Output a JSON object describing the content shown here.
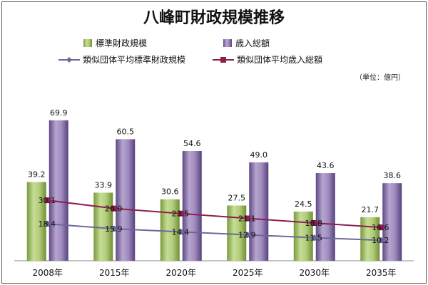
{
  "chart_data": {
    "type": "bar",
    "title": "八峰町財政規模推移",
    "unit": "（単位：億円）",
    "categories": [
      "2008年",
      "2015年",
      "2020年",
      "2025年",
      "2030年",
      "2035年"
    ],
    "ylim": [
      0,
      80
    ],
    "grid": false,
    "legend_position": "top",
    "series": [
      {
        "name": "標準財政規模",
        "type": "bar",
        "color": "#9bbb59",
        "values": [
          39.2,
          33.9,
          30.6,
          27.5,
          24.5,
          21.7
        ]
      },
      {
        "name": "歳入総額",
        "type": "bar",
        "color": "#8064a2",
        "values": [
          69.9,
          60.5,
          54.6,
          49.0,
          43.6,
          38.6
        ]
      },
      {
        "name": "類似団体平均標準財政規模",
        "type": "line",
        "marker": "diamond",
        "color": "#6a6a9c",
        "values": [
          18.4,
          15.9,
          14.4,
          12.9,
          11.5,
          10.2
        ]
      },
      {
        "name": "類似団体平均歳入総額",
        "type": "line",
        "marker": "square",
        "color": "#8c1f4e",
        "values": [
          30.1,
          26.0,
          23.5,
          21.1,
          18.8,
          16.6
        ]
      }
    ],
    "data_labels": {
      "bar1": [
        "39.2",
        "33.9",
        "30.6",
        "27.5",
        "24.5",
        "21.7"
      ],
      "bar2": [
        "69.9",
        "60.5",
        "54.6",
        "49.0",
        "43.6",
        "38.6"
      ],
      "line1": [
        "18.4",
        "15.9",
        "14.4",
        "12.9",
        "11.5",
        "10.2"
      ],
      "line2": [
        "30.1",
        "26.0",
        "23.5",
        "21.1",
        "18.8",
        "16.6"
      ]
    }
  }
}
